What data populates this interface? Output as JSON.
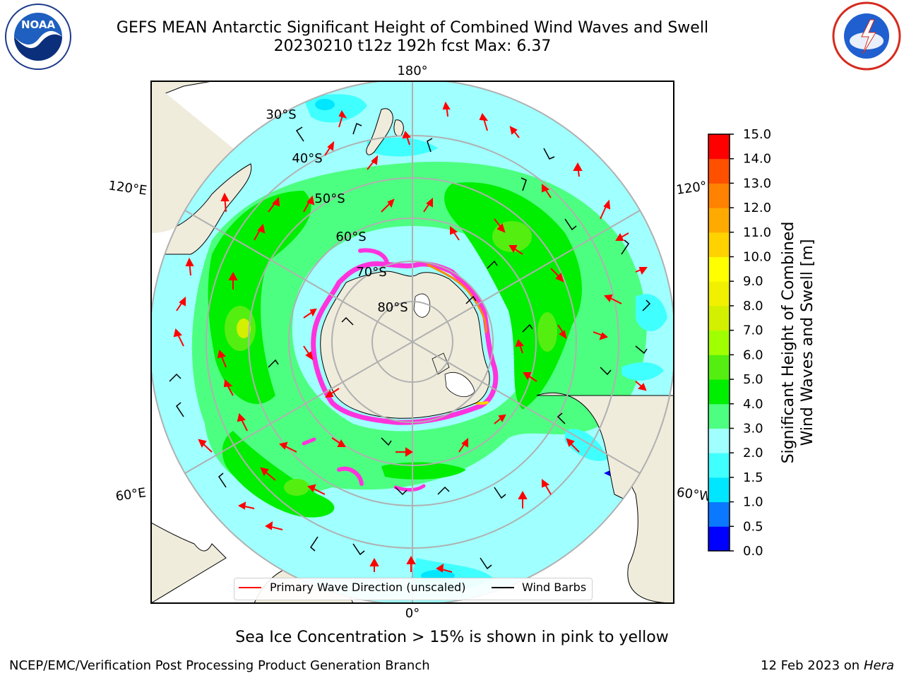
{
  "header": {
    "title_line1": "GEFS MEAN Antarctic Significant Height of Combined Wind Waves and Swell",
    "title_line2": "20230210 t12z 192h fcst   Max: 6.37"
  },
  "logos": {
    "noaa_text": "NOAA",
    "noaa_ring": "NATIONAL OCEANIC AND ATMOSPHERIC ADMINISTRATION · U.S. DEPARTMENT OF COMMERCE",
    "nws_ring": "NATIONAL WEATHER SERVICE"
  },
  "map": {
    "lon_labels": [
      "180°",
      "120°E",
      "120°",
      "60°E",
      "60°W",
      "0°"
    ],
    "lat_labels": [
      "30°S",
      "40°S",
      "50°S",
      "60°S",
      "70°S",
      "80°S"
    ]
  },
  "legend": {
    "wave_label": "Primary Wave Direction (unscaled)",
    "wind_label": "Wind Barbs"
  },
  "colorbar": {
    "label_line1": "Significant Height of Combined",
    "label_line2": "Wind Waves and Swell [m]",
    "ticks": [
      "0.0",
      "0.5",
      "1.0",
      "1.5",
      "2.0",
      "3.0",
      "4.0",
      "5.0",
      "6.0",
      "7.0",
      "8.0",
      "9.0",
      "10.0",
      "11.0",
      "12.0",
      "13.0",
      "14.0",
      "15.0"
    ],
    "colors": [
      "#0000ff",
      "#0a78ff",
      "#00e6ff",
      "#40ffff",
      "#a0ffff",
      "#4dff80",
      "#00ee00",
      "#55ee11",
      "#a0ff00",
      "#d2f000",
      "#f0f000",
      "#ffff00",
      "#ffd200",
      "#ffaa00",
      "#ff8200",
      "#ff5000",
      "#ff0000"
    ]
  },
  "map_colors": {
    "land": "#efecdc",
    "ice_pink": "#ff33dd",
    "arrow": "#ff0000",
    "barb": "#000000",
    "grid": "#b0b0b0"
  },
  "annotation": "Sea Ice Concentration > 15% is shown in pink to yellow",
  "footer": {
    "left": "NCEP/EMC/Verification Post Processing Product Generation Branch",
    "date": "12 Feb 2023 on",
    "machine": "Hera"
  }
}
